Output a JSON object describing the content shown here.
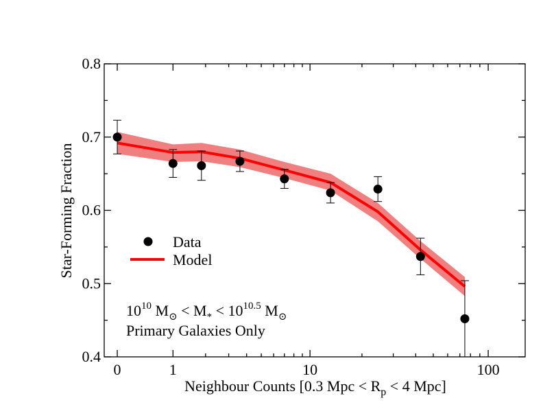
{
  "chart_data": {
    "type": "line",
    "title": "",
    "xlabel": "Neighbour Counts [0.3 Mpc < R",
    "xlabel_sub": "p",
    "xlabel_tail": " < 4 Mpc]",
    "ylabel": "Star-Forming Fraction",
    "x_scale": "log(1+N)",
    "xlim": [
      -0.15,
      159
    ],
    "ylim": [
      0.4,
      0.8
    ],
    "x_ticks": [
      {
        "value": 0,
        "label": "0"
      },
      {
        "value": 1,
        "label": "1"
      },
      {
        "value": 10,
        "label": "10"
      },
      {
        "value": 100,
        "label": "100"
      }
    ],
    "y_ticks": [
      {
        "value": 0.4,
        "label": "0.4"
      },
      {
        "value": 0.5,
        "label": "0.5"
      },
      {
        "value": 0.6,
        "label": "0.6"
      },
      {
        "value": 0.7,
        "label": "0.7"
      },
      {
        "value": 0.8,
        "label": "0.8"
      }
    ],
    "series": [
      {
        "name": "Data",
        "kind": "points_with_errorbars",
        "color": "#000000",
        "points": [
          {
            "x": 0,
            "y": 0.7,
            "err": 0.023
          },
          {
            "x": 1.0,
            "y": 0.664,
            "err": 0.019
          },
          {
            "x": 1.85,
            "y": 0.661,
            "err": 0.02
          },
          {
            "x": 3.6,
            "y": 0.667,
            "err": 0.014
          },
          {
            "x": 7.0,
            "y": 0.643,
            "err": 0.013
          },
          {
            "x": 13.2,
            "y": 0.624,
            "err": 0.014
          },
          {
            "x": 24.6,
            "y": 0.629,
            "err": 0.017
          },
          {
            "x": 42.5,
            "y": 0.537,
            "err": 0.025
          },
          {
            "x": 74.5,
            "y": 0.452,
            "err": 0.052
          }
        ]
      },
      {
        "name": "Model",
        "kind": "line_with_band",
        "color": "#ff0000",
        "band_color": "#f08080",
        "points": [
          {
            "x": 0,
            "y": 0.692,
            "lo": 0.677,
            "hi": 0.707
          },
          {
            "x": 1.0,
            "y": 0.679,
            "lo": 0.666,
            "hi": 0.69
          },
          {
            "x": 1.85,
            "y": 0.68,
            "lo": 0.667,
            "hi": 0.692
          },
          {
            "x": 3.6,
            "y": 0.671,
            "lo": 0.659,
            "hi": 0.683
          },
          {
            "x": 7.0,
            "y": 0.655,
            "lo": 0.644,
            "hi": 0.666
          },
          {
            "x": 13.2,
            "y": 0.638,
            "lo": 0.627,
            "hi": 0.65
          },
          {
            "x": 24.6,
            "y": 0.598,
            "lo": 0.585,
            "hi": 0.61
          },
          {
            "x": 42.5,
            "y": 0.546,
            "lo": 0.534,
            "hi": 0.558
          },
          {
            "x": 74.5,
            "y": 0.496,
            "lo": 0.483,
            "hi": 0.509
          }
        ]
      }
    ],
    "legend": {
      "placement": "center-left",
      "entries": [
        {
          "label": "Data",
          "kind": "marker"
        },
        {
          "label": "Model",
          "kind": "line"
        }
      ]
    },
    "annotations": {
      "mass_range": {
        "p1": "10",
        "p1_exp": "10",
        "p2": " M",
        "p2_sub": "⊙",
        "p3": " < M",
        "p3_sub": "*",
        "p4": " < 10",
        "p4_exp": "10.5",
        "p5": " M",
        "p5_sub": "⊙"
      },
      "sample": "Primary Galaxies Only"
    }
  }
}
